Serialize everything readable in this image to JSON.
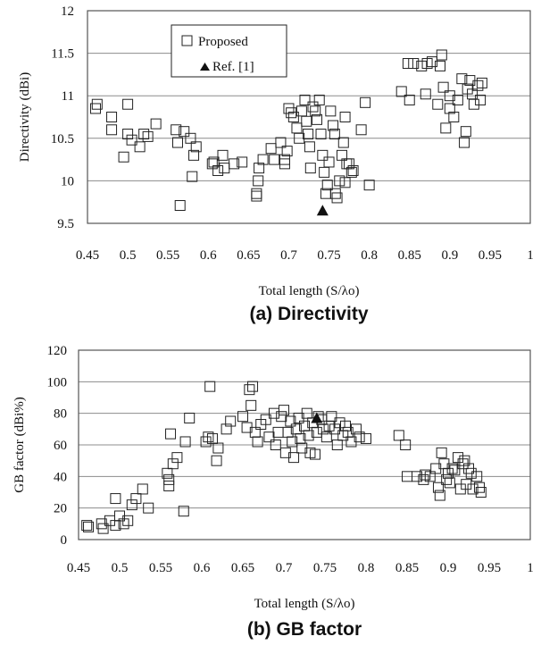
{
  "chart_data": [
    {
      "type": "scatter",
      "caption": "(a) Directivity",
      "xlabel": "Total length (S/λo)",
      "ylabel": "Directivity (dBi)",
      "xlim": [
        0.45,
        1.0
      ],
      "ylim": [
        9.5,
        12.0
      ],
      "xticks": [
        "0.45",
        "0.5",
        "0.55",
        "0.6",
        "0.65",
        "0.7",
        "0.75",
        "0.8",
        "0.85",
        "0.9",
        "0.95",
        "1"
      ],
      "yticks": [
        "9.5",
        "10",
        "10.5",
        "11",
        "11.5",
        "12"
      ],
      "grid": true,
      "legend": {
        "position": "top-left-inside",
        "entries": [
          "Proposed",
          "Ref. [1]"
        ]
      },
      "series": [
        {
          "name": "Proposed",
          "marker": "open-square",
          "points": [
            [
              0.46,
              10.85
            ],
            [
              0.462,
              10.9
            ],
            [
              0.48,
              10.75
            ],
            [
              0.48,
              10.6
            ],
            [
              0.495,
              10.28
            ],
            [
              0.5,
              10.9
            ],
            [
              0.5,
              10.55
            ],
            [
              0.505,
              10.48
            ],
            [
              0.515,
              10.4
            ],
            [
              0.52,
              10.55
            ],
            [
              0.525,
              10.52
            ],
            [
              0.535,
              10.67
            ],
            [
              0.56,
              10.6
            ],
            [
              0.562,
              10.45
            ],
            [
              0.565,
              9.71
            ],
            [
              0.57,
              10.58
            ],
            [
              0.578,
              10.5
            ],
            [
              0.58,
              10.05
            ],
            [
              0.582,
              10.3
            ],
            [
              0.585,
              10.4
            ],
            [
              0.605,
              10.2
            ],
            [
              0.607,
              10.22
            ],
            [
              0.612,
              10.12
            ],
            [
              0.618,
              10.3
            ],
            [
              0.62,
              10.15
            ],
            [
              0.632,
              10.2
            ],
            [
              0.642,
              10.22
            ],
            [
              0.66,
              9.82
            ],
            [
              0.66,
              9.85
            ],
            [
              0.662,
              10.0
            ],
            [
              0.663,
              10.15
            ],
            [
              0.668,
              10.25
            ],
            [
              0.678,
              10.38
            ],
            [
              0.682,
              10.25
            ],
            [
              0.69,
              10.45
            ],
            [
              0.695,
              10.2
            ],
            [
              0.695,
              10.25
            ],
            [
              0.698,
              10.35
            ],
            [
              0.7,
              10.85
            ],
            [
              0.703,
              10.8
            ],
            [
              0.706,
              10.75
            ],
            [
              0.71,
              10.62
            ],
            [
              0.713,
              10.5
            ],
            [
              0.716,
              10.82
            ],
            [
              0.72,
              10.95
            ],
            [
              0.722,
              10.7
            ],
            [
              0.724,
              10.55
            ],
            [
              0.726,
              10.4
            ],
            [
              0.727,
              10.15
            ],
            [
              0.73,
              10.87
            ],
            [
              0.733,
              10.82
            ],
            [
              0.735,
              10.72
            ],
            [
              0.738,
              10.95
            ],
            [
              0.74,
              10.55
            ],
            [
              0.742,
              10.3
            ],
            [
              0.744,
              10.1
            ],
            [
              0.746,
              9.85
            ],
            [
              0.748,
              9.95
            ],
            [
              0.75,
              10.22
            ],
            [
              0.752,
              10.82
            ],
            [
              0.755,
              10.65
            ],
            [
              0.757,
              10.55
            ],
            [
              0.758,
              9.85
            ],
            [
              0.76,
              9.8
            ],
            [
              0.763,
              10.0
            ],
            [
              0.766,
              10.3
            ],
            [
              0.768,
              10.45
            ],
            [
              0.77,
              10.75
            ],
            [
              0.772,
              10.2
            ],
            [
              0.775,
              10.2
            ],
            [
              0.778,
              10.1
            ],
            [
              0.78,
              10.12
            ],
            [
              0.79,
              10.6
            ],
            [
              0.795,
              10.92
            ],
            [
              0.8,
              9.95
            ],
            [
              0.77,
              9.98
            ],
            [
              0.84,
              11.05
            ],
            [
              0.848,
              11.38
            ],
            [
              0.85,
              10.95
            ],
            [
              0.855,
              11.38
            ],
            [
              0.865,
              11.35
            ],
            [
              0.87,
              11.02
            ],
            [
              0.872,
              11.38
            ],
            [
              0.878,
              11.4
            ],
            [
              0.885,
              10.9
            ],
            [
              0.888,
              11.35
            ],
            [
              0.89,
              11.48
            ],
            [
              0.892,
              11.1
            ],
            [
              0.895,
              10.62
            ],
            [
              0.9,
              11.0
            ],
            [
              0.9,
              10.85
            ],
            [
              0.905,
              10.75
            ],
            [
              0.91,
              10.95
            ],
            [
              0.915,
              11.2
            ],
            [
              0.918,
              10.45
            ],
            [
              0.92,
              10.58
            ],
            [
              0.922,
              11.08
            ],
            [
              0.925,
              11.18
            ],
            [
              0.928,
              11.02
            ],
            [
              0.93,
              10.9
            ],
            [
              0.935,
              11.12
            ],
            [
              0.938,
              10.95
            ],
            [
              0.94,
              11.15
            ]
          ]
        },
        {
          "name": "Ref. [1]",
          "marker": "filled-triangle",
          "points": [
            [
              0.742,
              9.65
            ]
          ]
        }
      ]
    },
    {
      "type": "scatter",
      "caption": "(b) GB factor",
      "xlabel": "Total length (S/λo)",
      "ylabel": "GB factor (dBi%)",
      "xlim": [
        0.45,
        1.0
      ],
      "ylim": [
        0,
        120
      ],
      "xticks": [
        "0.45",
        "0.5",
        "0.55",
        "0.6",
        "0.65",
        "0.7",
        "0.75",
        "0.8",
        "0.85",
        "0.9",
        "0.95",
        "1"
      ],
      "yticks": [
        "0",
        "20",
        "40",
        "60",
        "80",
        "100",
        "120"
      ],
      "grid": true,
      "series": [
        {
          "name": "Proposed",
          "marker": "open-square",
          "points": [
            [
              0.46,
              9
            ],
            [
              0.462,
              8
            ],
            [
              0.478,
              10
            ],
            [
              0.48,
              7
            ],
            [
              0.488,
              12
            ],
            [
              0.495,
              26
            ],
            [
              0.495,
              9
            ],
            [
              0.5,
              15
            ],
            [
              0.505,
              10
            ],
            [
              0.51,
              12
            ],
            [
              0.515,
              22
            ],
            [
              0.52,
              26
            ],
            [
              0.528,
              32
            ],
            [
              0.535,
              20
            ],
            [
              0.558,
              42
            ],
            [
              0.56,
              38
            ],
            [
              0.56,
              34
            ],
            [
              0.562,
              67
            ],
            [
              0.565,
              48
            ],
            [
              0.57,
              52
            ],
            [
              0.578,
              18
            ],
            [
              0.58,
              62
            ],
            [
              0.585,
              77
            ],
            [
              0.605,
              62
            ],
            [
              0.608,
              65
            ],
            [
              0.61,
              97
            ],
            [
              0.613,
              64
            ],
            [
              0.618,
              50
            ],
            [
              0.62,
              58
            ],
            [
              0.63,
              70
            ],
            [
              0.635,
              75
            ],
            [
              0.65,
              78
            ],
            [
              0.655,
              71
            ],
            [
              0.658,
              95
            ],
            [
              0.66,
              85
            ],
            [
              0.662,
              97
            ],
            [
              0.665,
              68
            ],
            [
              0.668,
              62
            ],
            [
              0.672,
              73
            ],
            [
              0.678,
              76
            ],
            [
              0.682,
              65
            ],
            [
              0.688,
              80
            ],
            [
              0.69,
              60
            ],
            [
              0.693,
              68
            ],
            [
              0.697,
              78
            ],
            [
              0.7,
              82
            ],
            [
              0.702,
              55
            ],
            [
              0.705,
              68
            ],
            [
              0.708,
              75
            ],
            [
              0.71,
              62
            ],
            [
              0.712,
              52
            ],
            [
              0.715,
              70
            ],
            [
              0.718,
              77
            ],
            [
              0.72,
              64
            ],
            [
              0.722,
              58
            ],
            [
              0.725,
              72
            ],
            [
              0.728,
              80
            ],
            [
              0.73,
              66
            ],
            [
              0.732,
              55
            ],
            [
              0.735,
              74
            ],
            [
              0.738,
              54
            ],
            [
              0.74,
              68
            ],
            [
              0.742,
              78
            ],
            [
              0.746,
              76
            ],
            [
              0.748,
              70
            ],
            [
              0.752,
              65
            ],
            [
              0.755,
              72
            ],
            [
              0.758,
              78
            ],
            [
              0.762,
              70
            ],
            [
              0.765,
              60
            ],
            [
              0.768,
              74
            ],
            [
              0.772,
              66
            ],
            [
              0.775,
              72
            ],
            [
              0.778,
              68
            ],
            [
              0.782,
              62
            ],
            [
              0.788,
              70
            ],
            [
              0.792,
              65
            ],
            [
              0.8,
              64
            ],
            [
              0.84,
              66
            ],
            [
              0.848,
              60
            ],
            [
              0.85,
              40
            ],
            [
              0.862,
              40
            ],
            [
              0.87,
              38
            ],
            [
              0.872,
              41
            ],
            [
              0.878,
              40
            ],
            [
              0.885,
              45
            ],
            [
              0.888,
              33
            ],
            [
              0.89,
              28
            ],
            [
              0.892,
              55
            ],
            [
              0.895,
              48
            ],
            [
              0.898,
              38
            ],
            [
              0.9,
              42
            ],
            [
              0.902,
              36
            ],
            [
              0.905,
              45
            ],
            [
              0.908,
              44
            ],
            [
              0.912,
              52
            ],
            [
              0.915,
              32
            ],
            [
              0.918,
              48
            ],
            [
              0.92,
              50
            ],
            [
              0.922,
              35
            ],
            [
              0.925,
              45
            ],
            [
              0.928,
              42
            ],
            [
              0.93,
              32
            ],
            [
              0.935,
              40
            ],
            [
              0.938,
              33
            ],
            [
              0.94,
              30
            ]
          ]
        },
        {
          "name": "Ref. [1]",
          "marker": "filled-triangle",
          "points": [
            [
              0.74,
              77
            ]
          ]
        }
      ]
    }
  ]
}
